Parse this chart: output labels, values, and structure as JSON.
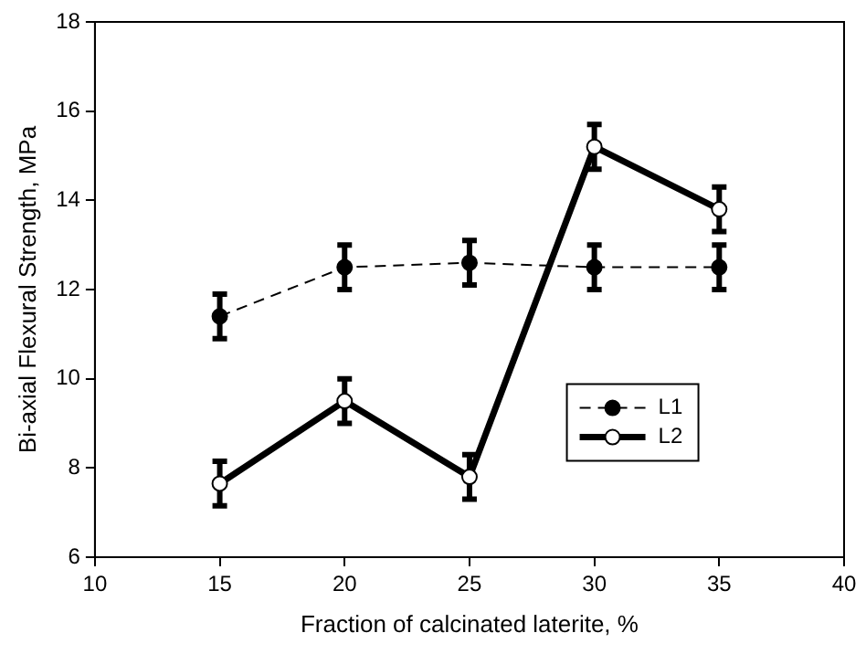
{
  "chart_data": {
    "type": "line",
    "xlabel": "Fraction of calcinated laterite, %",
    "ylabel": "Bi-axial Flexural Strength, MPa",
    "x": [
      15,
      20,
      25,
      30,
      35
    ],
    "series": [
      {
        "name": "L1",
        "color": "#000000",
        "line_style": "dashed",
        "values": [
          11.4,
          12.5,
          12.6,
          12.5,
          12.5
        ],
        "errors": [
          0.5,
          0.5,
          0.5,
          0.5,
          0.5
        ]
      },
      {
        "name": "L2",
        "color": "#000000",
        "line_style": "solid",
        "values": [
          7.65,
          9.5,
          7.8,
          15.2,
          13.8
        ],
        "errors": [
          0.5,
          0.5,
          0.5,
          0.5,
          0.5
        ]
      }
    ],
    "xlim": [
      10,
      40
    ],
    "xticks": [
      10,
      15,
      20,
      25,
      30,
      35,
      40
    ],
    "ylim": [
      6,
      18
    ],
    "yticks": [
      6,
      8,
      10,
      12,
      14,
      16,
      18
    ],
    "grid": false,
    "legend": "bottom right",
    "marker": "circle"
  }
}
